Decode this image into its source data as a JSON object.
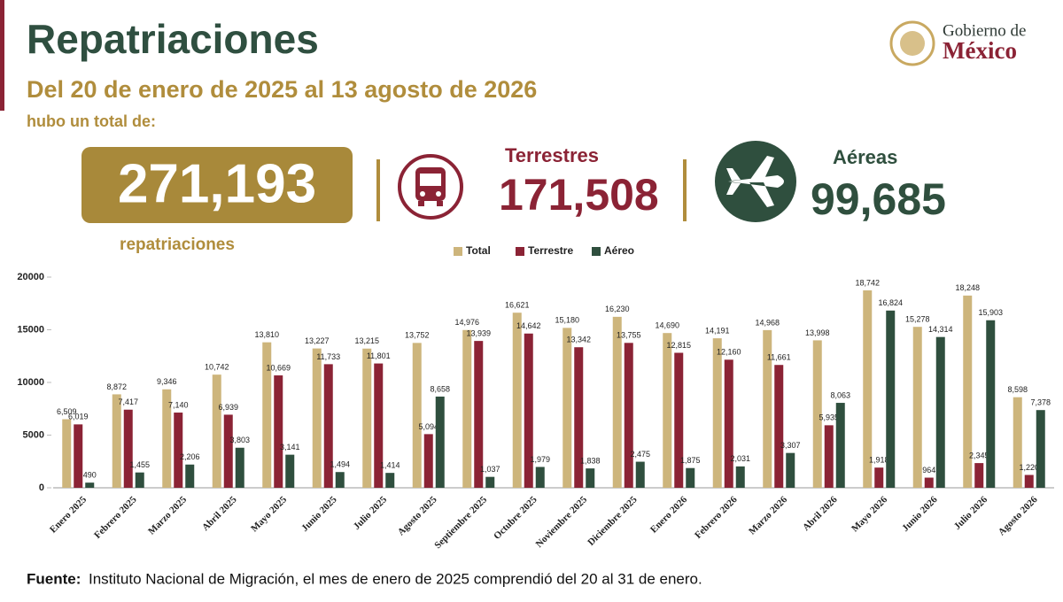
{
  "header": {
    "title": "Repatriaciones",
    "subtitle": "Del 20 de enero de 2025 al 13 agosto de 2026",
    "intro": "hubo un total de:",
    "logo_line1": "Gobierno de",
    "logo_line2": "México"
  },
  "summary": {
    "total": "271,193",
    "total_caption": "repatriaciones",
    "land_label": "Terrestres",
    "land_total": "171,508",
    "air_label": "Aéreas",
    "air_total": "99,685"
  },
  "footer": {
    "source_label": "Fuente:",
    "source_text": "Instituto Nacional de Migración, el mes de enero de 2025 comprendió del 20 al 31 de enero."
  },
  "chart_data": {
    "type": "bar",
    "categories": [
      "Enero 2025",
      "Febrero 2025",
      "Marzo 2025",
      "Abril 2025",
      "Mayo 2025",
      "Junio 2025",
      "Julio 2025",
      "Agosto 2025",
      "Septiembre 2025",
      "Octubre 2025",
      "Noviembre 2025",
      "Diciembre 2025",
      "Enero 2026",
      "Febrero 2026",
      "Marzo 2026",
      "Abril 2026",
      "Mayo 2026",
      "Junio 2026",
      "Julio 2026",
      "Agosto 2026"
    ],
    "series": [
      {
        "name": "Total",
        "color": "#cdb57c",
        "values": [
          6509,
          8872,
          9346,
          10742,
          13810,
          13227,
          13215,
          13752,
          14976,
          16621,
          15180,
          16230,
          14690,
          14191,
          14968,
          13998,
          18742,
          15278,
          18248,
          8598
        ],
        "value_labels": [
          "6,509",
          "8,872",
          "9,346",
          "10,742",
          "13,810",
          "13,227",
          "13,215",
          "13,752",
          "14,976",
          "16,621",
          "15,180",
          "16,230",
          "14,690",
          "14,191",
          "14,968",
          "13,998",
          "18,742",
          "15,278",
          "18,248",
          "8,598"
        ]
      },
      {
        "name": "Terrestre",
        "color": "#8b2335",
        "values": [
          6019,
          7417,
          7140,
          6939,
          10669,
          11733,
          11801,
          5094,
          13939,
          14642,
          13342,
          13755,
          12815,
          12160,
          11661,
          5935,
          1918,
          964,
          2345,
          1220
        ],
        "value_labels": [
          "6,019",
          "7,417",
          "7,140",
          "6,939",
          "10,669",
          "11,733",
          "11,801",
          "5,094",
          "13,939",
          "14,642",
          "13,342",
          "13,755",
          "12,815",
          "12,160",
          "11,661",
          "5,935",
          "1,918",
          "964",
          "2,345",
          "1,220"
        ]
      },
      {
        "name": "Aéreo",
        "color": "#2f4f3e",
        "values": [
          490,
          1455,
          2206,
          3803,
          3141,
          1494,
          1414,
          8658,
          1037,
          1979,
          1838,
          2475,
          1875,
          2031,
          3307,
          8063,
          16824,
          14314,
          15903,
          7378
        ],
        "value_labels": [
          "490",
          "1,455",
          "2,206",
          "3,803",
          "3,141",
          "1,494",
          "1,414",
          "8,658",
          "1,037",
          "1,979",
          "1,838",
          "2,475",
          "1,875",
          "2,031",
          "3,307",
          "8,063",
          "16,824",
          "14,314",
          "15,903",
          "7,378"
        ]
      }
    ],
    "ylim": [
      0,
      20000
    ],
    "yticks": [
      0,
      5000,
      10000,
      15000,
      20000
    ],
    "grid": false,
    "legend": "top"
  }
}
